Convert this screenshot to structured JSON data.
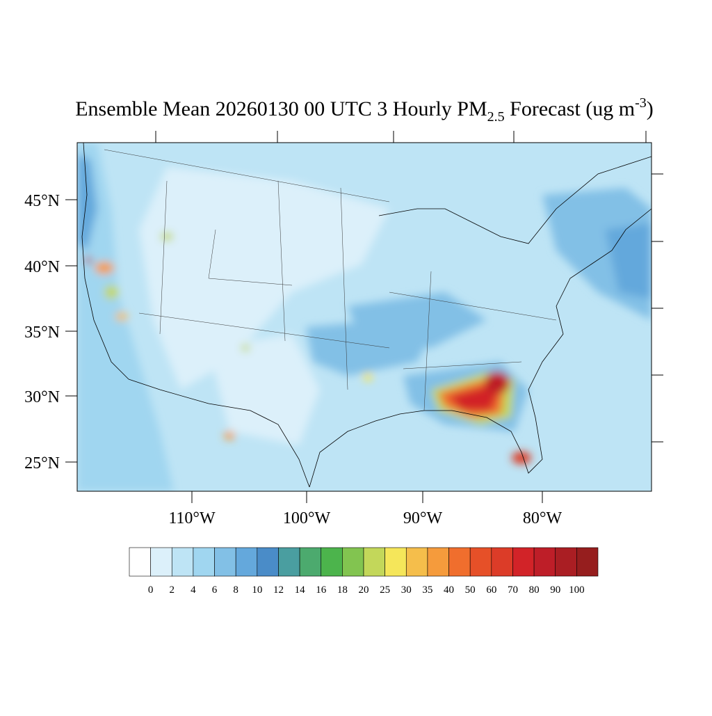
{
  "header": {
    "title": {
      "main": "Ensemble Mean 20260130 00 UTC 3 Hourly PM",
      "sub": "2.5",
      "middle": " Forecast (ug m",
      "sup": "-3",
      "end": ")"
    }
  },
  "map": {
    "lat_labels": [
      "45°N",
      "40°N",
      "35°N",
      "30°N",
      "25°N"
    ],
    "lon_labels": [
      "110°W",
      "100°W",
      "90°W",
      "80°W"
    ]
  },
  "colorbar": {
    "levels": [
      0,
      2,
      4,
      6,
      8,
      10,
      12,
      14,
      16,
      18,
      20,
      25,
      30,
      35,
      40,
      50,
      60,
      70,
      80,
      90,
      100
    ],
    "colors": [
      "#ffffff",
      "#dcf0fa",
      "#bee4f5",
      "#a0d6f0",
      "#82c0e6",
      "#64a8dc",
      "#4a8cc8",
      "#4a9ea0",
      "#4caa6e",
      "#4cb44c",
      "#82c450",
      "#c3d75a",
      "#f5e65a",
      "#f5be4b",
      "#f59b3c",
      "#f06e2d",
      "#e65028",
      "#dc3c28",
      "#d22328",
      "#be1e28",
      "#aa1e23",
      "#961e1e"
    ]
  }
}
